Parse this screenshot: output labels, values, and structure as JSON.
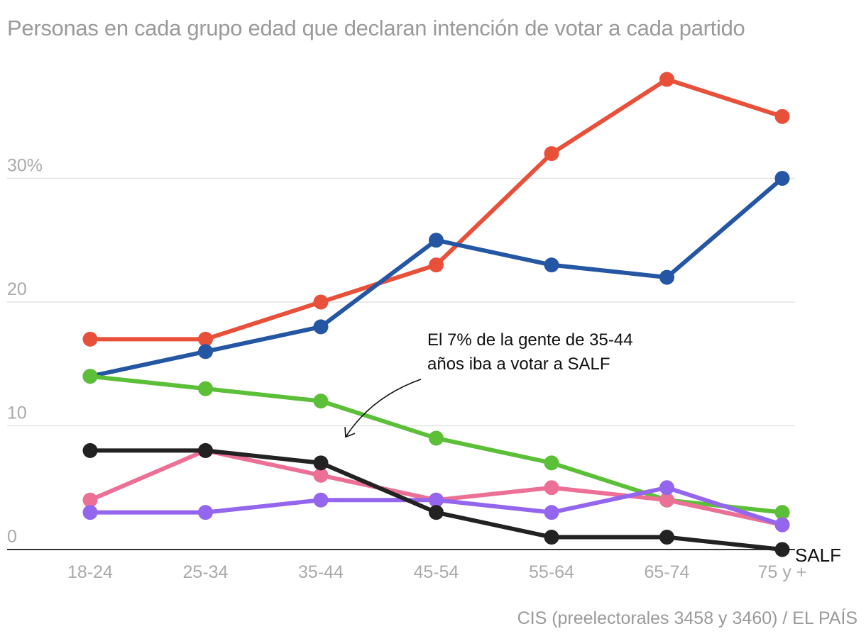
{
  "chart_data": {
    "type": "line",
    "title": "Personas en cada grupo edad que declaran intención de votar a cada partido",
    "source": "CIS (preelectorales 3458 y 3460) / EL PAÍS",
    "xlabel": "",
    "ylabel": "",
    "categories": [
      "18-24",
      "25-34",
      "35-44",
      "45-54",
      "55-64",
      "65-74",
      "75 y +"
    ],
    "ylim": [
      0,
      40
    ],
    "yticks": [
      {
        "value": 0,
        "label": "0"
      },
      {
        "value": 10,
        "label": "10"
      },
      {
        "value": 20,
        "label": "20"
      },
      {
        "value": 30,
        "label": "30%"
      }
    ],
    "grid": true,
    "series": [
      {
        "name": "red-series",
        "label": "",
        "color": "#e8503a",
        "values": [
          17,
          17,
          20,
          23,
          32,
          38,
          35
        ]
      },
      {
        "name": "blue-series",
        "label": "",
        "color": "#2456a4",
        "values": [
          14,
          16,
          18,
          25,
          23,
          22,
          30
        ]
      },
      {
        "name": "green-series",
        "label": "",
        "color": "#5bbf37",
        "values": [
          14,
          13,
          12,
          9,
          7,
          4,
          3
        ]
      },
      {
        "name": "pink-series",
        "label": "",
        "color": "#ec7096",
        "values": [
          4,
          8,
          6,
          4,
          5,
          4,
          2
        ]
      },
      {
        "name": "purple-series",
        "label": "",
        "color": "#9466ee",
        "values": [
          3,
          3,
          4,
          4,
          3,
          5,
          2
        ]
      },
      {
        "name": "salf-series",
        "label": "SALF",
        "color": "#222222",
        "values": [
          8,
          8,
          7,
          3,
          1,
          1,
          0
        ]
      }
    ],
    "annotation": {
      "lines": [
        "El 7% de la gente de 35-44",
        "años iba a votar a SALF"
      ],
      "target_category": "35-44",
      "target_series": "SALF"
    },
    "legend": "none"
  }
}
